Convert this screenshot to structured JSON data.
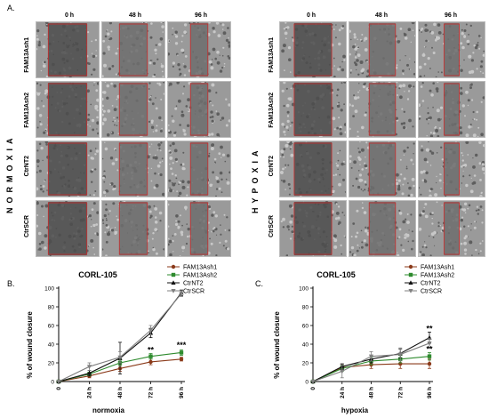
{
  "panel_a": {
    "letter": "A.",
    "time_points": [
      "0 h",
      "48 h",
      "96 h"
    ],
    "conditions": [
      {
        "label": "NORMOXIA"
      },
      {
        "label": "HYPOXIA"
      }
    ],
    "rows": [
      "FAM13Ash1",
      "FAM13Ash2",
      "CtrNT2",
      "CtrSCR"
    ]
  },
  "colors": {
    "FAM13Ash1": "#8b3a1a",
    "FAM13Ash2": "#2e8b2e",
    "CtrNT2": "#111111",
    "CtrSCR": "#808080",
    "wound_box": "#cc2a2a"
  },
  "chart_data": [
    {
      "type": "line",
      "panel_letter": "B.",
      "title": "CORL-105",
      "xlabel": "normoxia",
      "ylabel": "% of wound closure",
      "categories": [
        "0",
        "24 h",
        "48 h",
        "72 h",
        "96 h"
      ],
      "ylim": [
        0,
        100
      ],
      "yticks": [
        "0",
        "20",
        "40",
        "60",
        "80",
        "100"
      ],
      "legend_position": "top-right",
      "series": [
        {
          "name": "FAM13Ash1",
          "values": [
            0,
            6,
            14,
            21,
            24
          ],
          "err": [
            0,
            2,
            3,
            3,
            2
          ]
        },
        {
          "name": "FAM13Ash2",
          "values": [
            0,
            8,
            20,
            27,
            31
          ],
          "err": [
            0,
            2,
            3,
            3,
            3
          ]
        },
        {
          "name": "CtrNT2",
          "values": [
            0,
            9,
            25,
            52,
            95
          ],
          "err": [
            0,
            3,
            17,
            5,
            3
          ]
        },
        {
          "name": "CtrSCR",
          "values": [
            0,
            16,
            26,
            55,
            94
          ],
          "err": [
            0,
            4,
            6,
            5,
            3
          ]
        }
      ],
      "annotations": [
        {
          "text": "**",
          "x": "72 h",
          "y": 31
        },
        {
          "text": "***",
          "x": "96 h",
          "y": 36
        }
      ]
    },
    {
      "type": "line",
      "panel_letter": "C.",
      "title": "CORL-105",
      "xlabel": "hypoxia",
      "ylabel": "% of wound closure",
      "categories": [
        "0",
        "24 h",
        "48 h",
        "72 h",
        "96 h"
      ],
      "ylim": [
        0,
        100
      ],
      "yticks": [
        "0",
        "20",
        "40",
        "60",
        "80",
        "100"
      ],
      "legend_position": "top-right",
      "series": [
        {
          "name": "FAM13Ash1",
          "values": [
            0,
            15,
            18,
            19,
            19
          ],
          "err": [
            0,
            3,
            4,
            5,
            5
          ]
        },
        {
          "name": "FAM13Ash2",
          "values": [
            0,
            14,
            22,
            24,
            27
          ],
          "err": [
            0,
            3,
            4,
            4,
            4
          ]
        },
        {
          "name": "CtrNT2",
          "values": [
            0,
            16,
            24,
            30,
            47
          ],
          "err": [
            0,
            3,
            4,
            5,
            6
          ]
        },
        {
          "name": "CtrSCR",
          "values": [
            0,
            11,
            27,
            29,
            41
          ],
          "err": [
            0,
            7,
            5,
            7,
            5
          ]
        }
      ],
      "annotations": [
        {
          "text": "**",
          "x": "96 h",
          "y": 54
        },
        {
          "text": "**",
          "x": "96 h",
          "y": 32
        }
      ]
    }
  ]
}
